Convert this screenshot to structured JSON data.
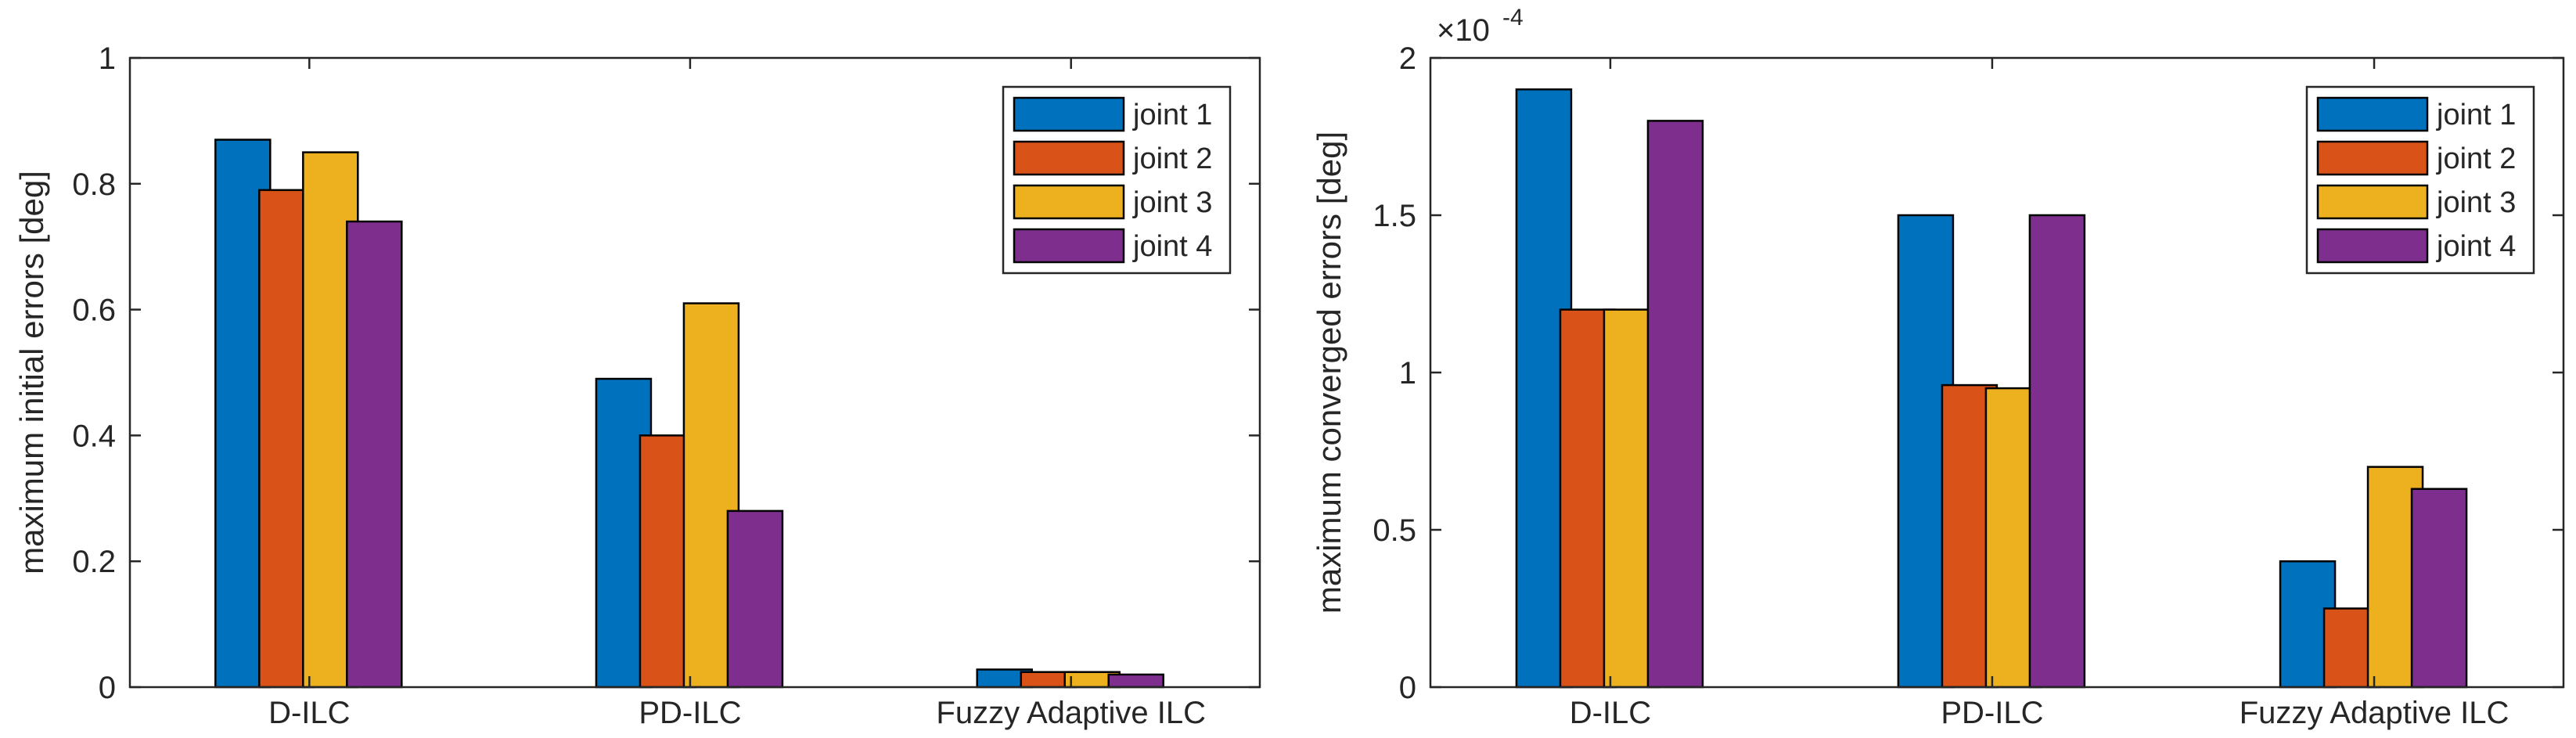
{
  "colors": {
    "joint_1": "#0072BD",
    "joint_2": "#D95319",
    "joint_3": "#EDB120",
    "joint_4": "#7E2F8E",
    "axis": "#262626",
    "background": "#ffffff"
  },
  "chart_data": [
    {
      "type": "bar",
      "title": "",
      "xlabel": "",
      "ylabel": "maximum initial errors [deg]",
      "ylim": [
        0,
        1
      ],
      "yticks": [
        0,
        0.2,
        0.4,
        0.6,
        0.8,
        1
      ],
      "ytick_labels": [
        "0",
        "0.2",
        "0.4",
        "0.6",
        "0.8",
        "1"
      ],
      "exponent_label": "",
      "categories": [
        "D-ILC",
        "PD-ILC",
        "Fuzzy Adaptive ILC"
      ],
      "legend_position": "top-right",
      "grid": false,
      "series": [
        {
          "name": "joint 1",
          "values": [
            0.87,
            0.49,
            0.028
          ]
        },
        {
          "name": "joint 2",
          "values": [
            0.79,
            0.4,
            0.024
          ]
        },
        {
          "name": "joint 3",
          "values": [
            0.85,
            0.61,
            0.024
          ]
        },
        {
          "name": "joint 4",
          "values": [
            0.74,
            0.28,
            0.02
          ]
        }
      ]
    },
    {
      "type": "bar",
      "title": "",
      "xlabel": "",
      "ylabel": "maximum converged errors [deg]",
      "ylim": [
        0,
        2
      ],
      "yticks": [
        0,
        0.5,
        1,
        1.5,
        2
      ],
      "ytick_labels": [
        "0",
        "0.5",
        "1",
        "1.5",
        "2"
      ],
      "exponent_label": "×10",
      "exponent_power": "-4",
      "categories": [
        "D-ILC",
        "PD-ILC",
        "Fuzzy Adaptive ILC"
      ],
      "legend_position": "top-right",
      "grid": false,
      "series": [
        {
          "name": "joint 1",
          "values": [
            1.9,
            1.5,
            0.4
          ]
        },
        {
          "name": "joint 2",
          "values": [
            1.2,
            0.96,
            0.25
          ]
        },
        {
          "name": "joint 3",
          "values": [
            1.2,
            0.95,
            0.7
          ]
        },
        {
          "name": "joint 4",
          "values": [
            1.8,
            1.5,
            0.63
          ]
        }
      ]
    }
  ]
}
